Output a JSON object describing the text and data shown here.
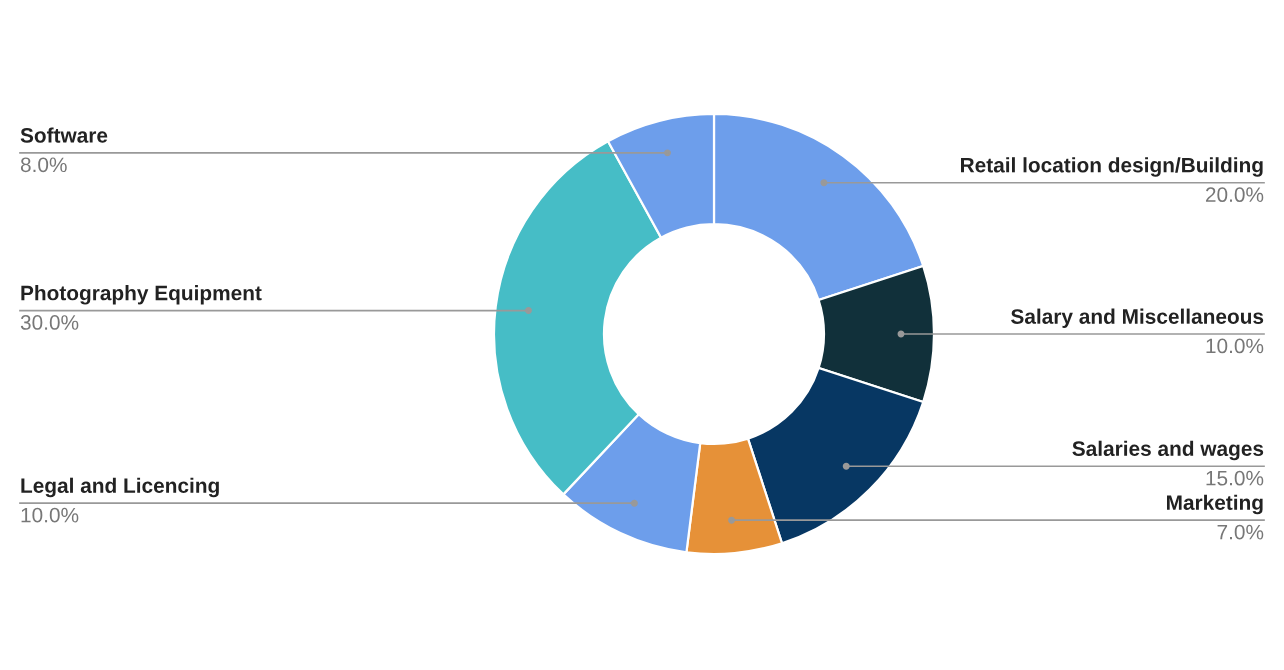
{
  "chart_data": {
    "type": "donut",
    "categories": [
      "Retail location design/Building",
      "Salary and Miscellaneous",
      "Salaries and wages",
      "Marketing",
      "Legal and Licencing",
      "Photography Equipment",
      "Software"
    ],
    "values": [
      20,
      10,
      15,
      7,
      10,
      30,
      8
    ],
    "value_labels": [
      "20.0%",
      "10.0%",
      "15.0%",
      "7.0%",
      "10.0%",
      "30.0%",
      "8.0%"
    ],
    "colors": [
      "#6d9eeb",
      "#11303a",
      "#073763",
      "#e69138",
      "#6d9eeb",
      "#46bdc6",
      "#6d9eeb"
    ],
    "legend": false
  }
}
